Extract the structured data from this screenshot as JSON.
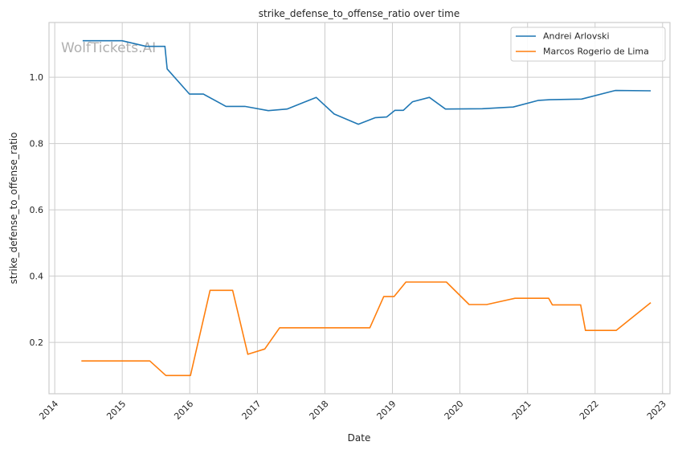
{
  "watermark": "WolfTickets.AI",
  "chart_data": {
    "type": "line",
    "title": "strike_defense_to_offense_ratio over time",
    "xlabel": "Date",
    "ylabel": "strike_defense_to_offense_ratio",
    "x_axis_type": "date",
    "xlim": [
      "2013-12-01",
      "2023-02-10"
    ],
    "ylim": [
      0.045,
      1.165
    ],
    "x_ticks": [
      "2014",
      "2015",
      "2016",
      "2017",
      "2018",
      "2019",
      "2020",
      "2021",
      "2022",
      "2023"
    ],
    "y_ticks": [
      0.2,
      0.4,
      0.6,
      0.8,
      1.0
    ],
    "y_tick_labels": [
      "0.2",
      "0.4",
      "0.6",
      "0.8",
      "1.0"
    ],
    "grid": true,
    "legend_position": "top-right",
    "colors": {
      "Andrei Arlovski": "#1f77b4",
      "Marcos Rogerio de Lima": "#ff7f0e"
    },
    "series": [
      {
        "name": "Andrei Arlovski",
        "x": [
          "2014-06-01",
          "2014-12-31",
          "2015-05-10",
          "2015-08-20",
          "2015-09-01",
          "2015-12-31",
          "2016-03-15",
          "2016-07-15",
          "2016-10-25",
          "2017-03-01",
          "2017-06-10",
          "2017-11-15",
          "2018-02-20",
          "2018-07-01",
          "2018-10-01",
          "2018-12-01",
          "2019-01-15",
          "2019-03-01",
          "2019-04-20",
          "2019-07-20",
          "2019-10-15",
          "2020-05-01",
          "2020-10-15",
          "2021-03-01",
          "2021-05-01",
          "2021-10-20",
          "2022-04-20",
          "2022-10-29"
        ],
        "values": [
          1.11,
          1.11,
          1.093,
          1.093,
          1.025,
          0.949,
          0.949,
          0.912,
          0.912,
          0.899,
          0.904,
          0.939,
          0.889,
          0.858,
          0.878,
          0.88,
          0.9,
          0.9,
          0.926,
          0.939,
          0.904,
          0.905,
          0.91,
          0.93,
          0.932,
          0.934,
          0.96,
          0.959
        ]
      },
      {
        "name": "Marcos Rogerio de Lima",
        "x": [
          "2014-05-25",
          "2015-05-30",
          "2015-08-25",
          "2016-01-05",
          "2016-04-20",
          "2016-08-20",
          "2016-11-10",
          "2017-02-10",
          "2017-05-01",
          "2018-09-01",
          "2018-11-15",
          "2019-01-10",
          "2019-03-15",
          "2019-10-20",
          "2020-02-20",
          "2020-05-25",
          "2020-10-25",
          "2021-04-25",
          "2021-05-15",
          "2021-10-15",
          "2021-11-10",
          "2022-04-25",
          "2022-10-29"
        ],
        "values": [
          0.144,
          0.144,
          0.1,
          0.1,
          0.357,
          0.357,
          0.164,
          0.18,
          0.244,
          0.244,
          0.338,
          0.338,
          0.382,
          0.382,
          0.314,
          0.314,
          0.333,
          0.333,
          0.313,
          0.313,
          0.236,
          0.236,
          0.32
        ]
      }
    ]
  }
}
